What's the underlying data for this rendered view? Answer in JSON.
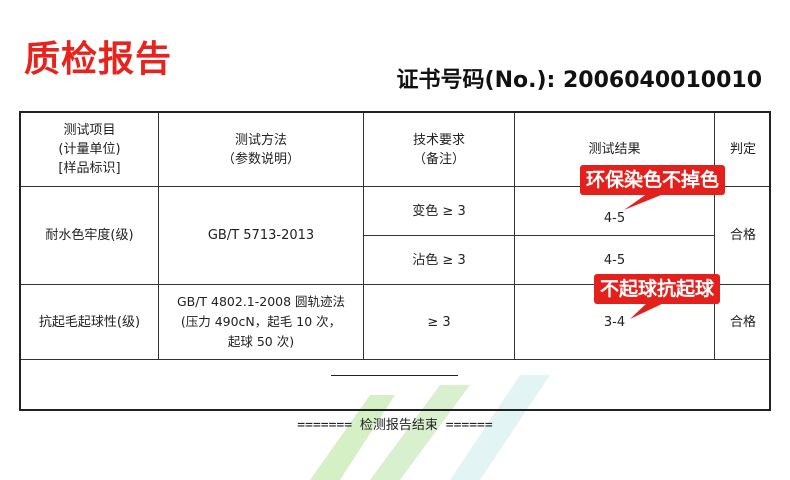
{
  "title": "质检报告",
  "certificate": "证书号码(No.): 2006040010010",
  "headers": {
    "item": [
      "测试项目",
      "(计量单位)",
      "[样品标识]"
    ],
    "method": [
      "测试方法",
      "（参数说明）"
    ],
    "requirement": [
      "技术要求",
      "（备注）"
    ],
    "result": "测试结果",
    "verdict": "判定"
  },
  "rows": [
    {
      "item": "耐水色牢度(级)",
      "method": [
        "GB/T 5713-2013"
      ],
      "sub": [
        {
          "requirement": "变色 ≥ 3",
          "result": "4-5"
        },
        {
          "requirement": "沾色 ≥ 3",
          "result": "4-5"
        }
      ],
      "verdict": "合格"
    },
    {
      "item": "抗起毛起球性(级)",
      "method": [
        "GB/T 4802.1-2008 圆轨迹法",
        "(压力 490cN，起毛 10 次，",
        "起球 50 次)"
      ],
      "requirement": "≥ 3",
      "result": "3-4",
      "verdict": "合格"
    }
  ],
  "callouts": [
    "环保染色不掉色",
    "不起球抗起球"
  ],
  "footer": "======= 检测报告结束 ======",
  "colors": {
    "accent": "#e8231e",
    "callout": "#e4201c",
    "watermark": "#c9ebb3"
  }
}
